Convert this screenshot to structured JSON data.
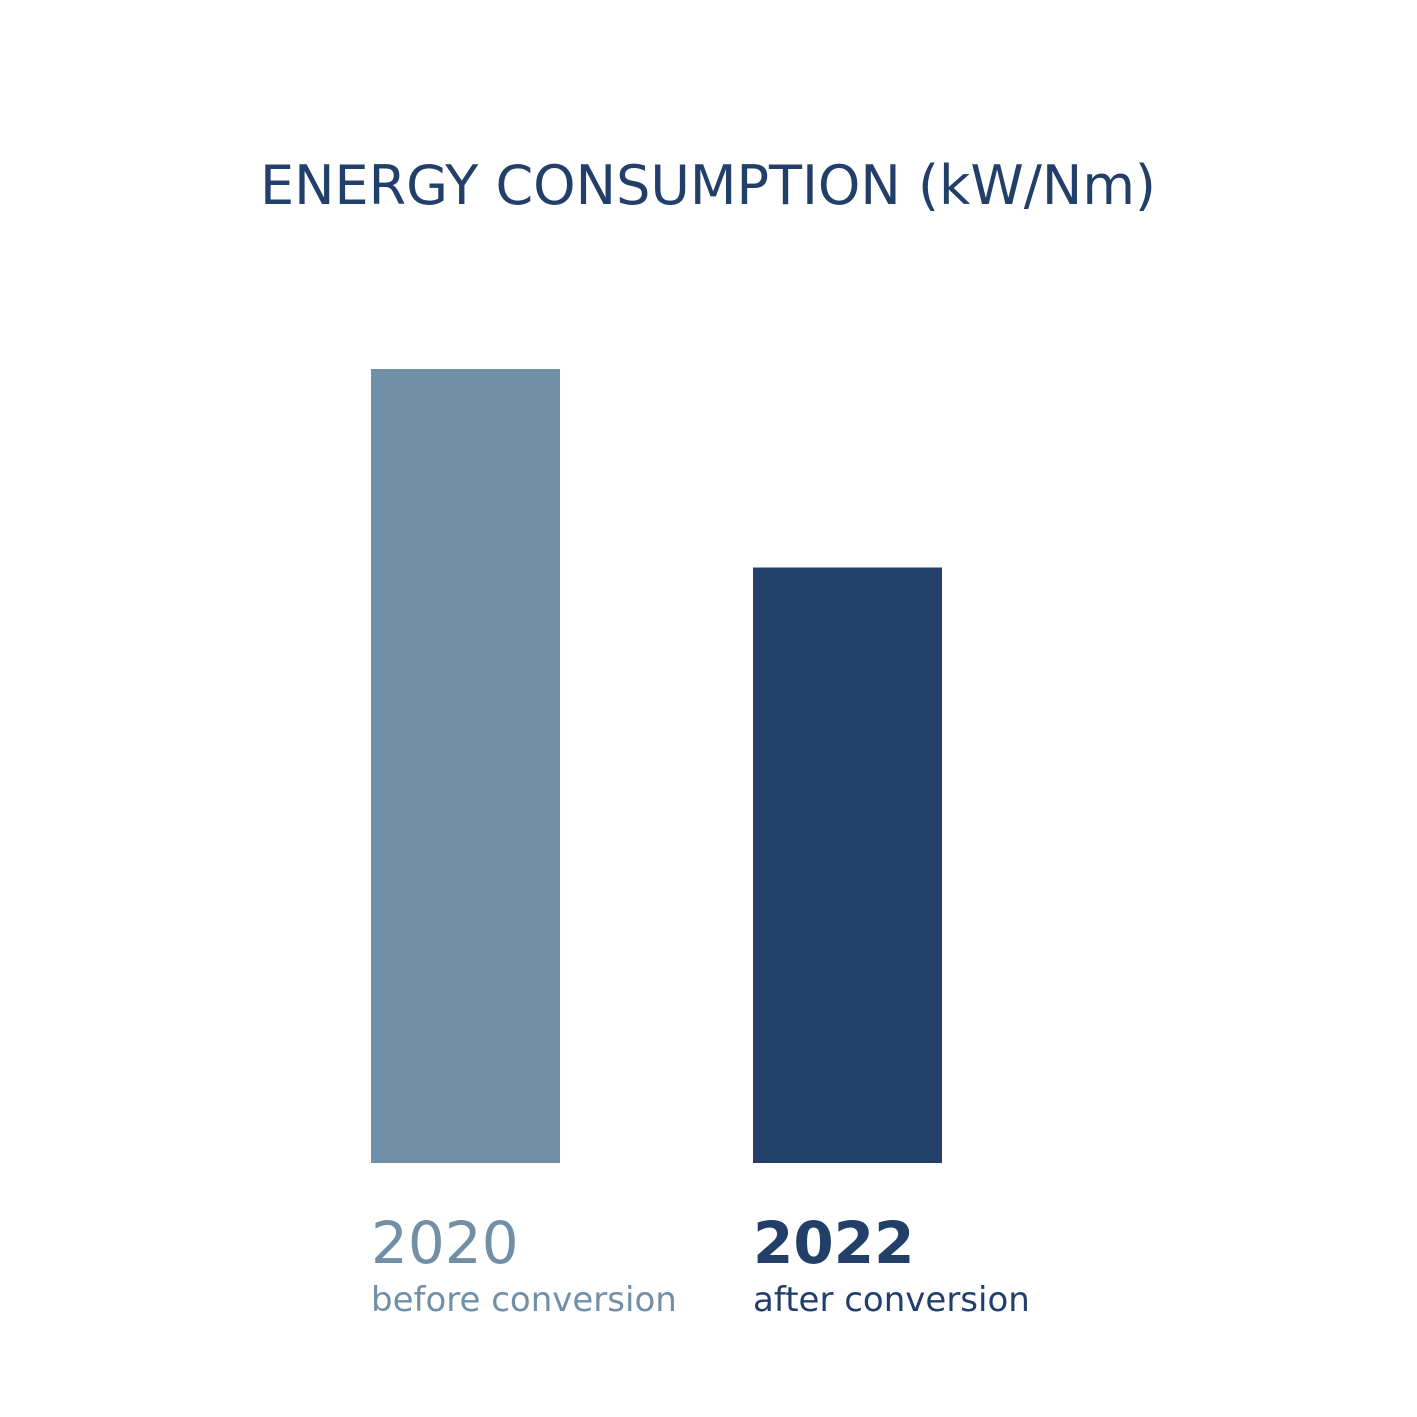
{
  "chart_data": {
    "type": "bar",
    "title": "ENERGY CONSUMPTION (kW/Nm)",
    "categories": [
      "2020",
      "2022"
    ],
    "subtitles": [
      "before conversion",
      "after conversion"
    ],
    "values": [
      100,
      75
    ],
    "colors": [
      "#718fa7",
      "#213f68"
    ],
    "title_color": "#213f68",
    "ylim": [
      0,
      100
    ],
    "grid": false,
    "axes_visible": false
  }
}
